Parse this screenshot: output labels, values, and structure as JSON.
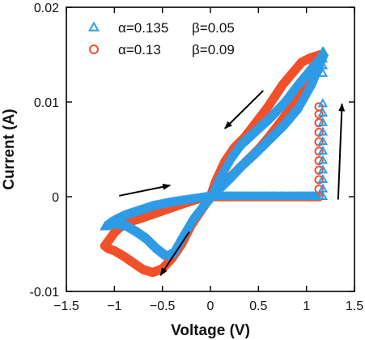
{
  "chart_data": {
    "type": "scatter",
    "title": "",
    "xlabel": "Voltage (V)",
    "ylabel": "Current (A)",
    "xlim": [
      -1.5,
      1.5
    ],
    "ylim": [
      -0.01,
      0.02
    ],
    "xticks": [
      -1.5,
      -1,
      -0.5,
      0,
      0.5,
      1,
      1.5
    ],
    "xtick_labels": [
      "−1.5",
      "−1",
      "−0.5",
      "0",
      "0.5",
      "1",
      "1.5"
    ],
    "yticks": [
      -0.01,
      0,
      0.01,
      0.02
    ],
    "ytick_labels": [
      "-0.01",
      "0",
      "0.01",
      "0.02"
    ],
    "grid": false,
    "legend_position": "top-left",
    "series": [
      {
        "name": "α=0.13",
        "name_extra": "β=0.09",
        "marker": "circle",
        "color": "#f2502a",
        "segments": [
          [
            [
              1.1,
              0
            ],
            [
              0.8,
              0
            ],
            [
              0.5,
              0
            ],
            [
              0.2,
              0
            ],
            [
              0,
              0
            ]
          ],
          [
            [
              0,
              0
            ],
            [
              0.1,
              0.001
            ],
            [
              0.2,
              0.002
            ],
            [
              0.35,
              0.0035
            ],
            [
              0.5,
              0.005
            ],
            [
              0.6,
              0.0062
            ],
            [
              0.7,
              0.0075
            ],
            [
              0.85,
              0.0095
            ],
            [
              1.0,
              0.0125
            ],
            [
              1.1,
              0.0143
            ],
            [
              1.15,
              0.015
            ]
          ],
          [
            [
              1.15,
              0.015
            ],
            [
              1.05,
              0.0147
            ],
            [
              0.95,
              0.0142
            ],
            [
              0.85,
              0.013
            ],
            [
              0.75,
              0.0118
            ],
            [
              0.6,
              0.0095
            ],
            [
              0.45,
              0.0075
            ],
            [
              0.35,
              0.0062
            ],
            [
              0.25,
              0.0052
            ],
            [
              0.15,
              0.0037
            ],
            [
              0.05,
              0.0015
            ],
            [
              0,
              0
            ]
          ],
          [
            [
              0,
              0
            ],
            [
              -0.1,
              -0.0015
            ],
            [
              -0.2,
              -0.003
            ],
            [
              -0.3,
              -0.005
            ],
            [
              -0.4,
              -0.0065
            ],
            [
              -0.5,
              -0.0076
            ],
            [
              -0.6,
              -0.008
            ],
            [
              -0.7,
              -0.0077
            ],
            [
              -0.8,
              -0.007
            ],
            [
              -0.9,
              -0.0063
            ],
            [
              -1.0,
              -0.0057
            ],
            [
              -1.06,
              -0.0055
            ],
            [
              -1.1,
              -0.0052
            ]
          ],
          [
            [
              -1.1,
              -0.0052
            ],
            [
              -1.05,
              -0.0045
            ],
            [
              -1.0,
              -0.0038
            ],
            [
              -0.95,
              -0.0033
            ],
            [
              -0.85,
              -0.0027
            ],
            [
              -0.7,
              -0.0022
            ],
            [
              -0.5,
              -0.0015
            ],
            [
              -0.3,
              -0.0008
            ],
            [
              -0.15,
              -0.0003
            ],
            [
              0,
              0
            ]
          ]
        ],
        "vertical": [
          1.13,
          [
            0,
            0.0008,
            0.0018,
            0.0028,
            0.0038,
            0.0048,
            0.0058,
            0.0068,
            0.0078,
            0.0087,
            0.0095
          ]
        ]
      },
      {
        "name": "α=0.135",
        "name_extra": "β=0.05",
        "marker": "triangle",
        "color": "#2e9be6",
        "segments": [
          [
            [
              1.1,
              0
            ],
            [
              0.8,
              0
            ],
            [
              0.5,
              0
            ],
            [
              0.2,
              0
            ],
            [
              0,
              0
            ]
          ],
          [
            [
              0,
              0
            ],
            [
              0.1,
              0.001
            ],
            [
              0.2,
              0.002
            ],
            [
              0.3,
              0.0031
            ],
            [
              0.45,
              0.0045
            ],
            [
              0.6,
              0.006
            ],
            [
              0.75,
              0.0075
            ],
            [
              0.9,
              0.0093
            ],
            [
              1.05,
              0.012
            ],
            [
              1.15,
              0.0145
            ],
            [
              1.18,
              0.0152
            ]
          ],
          [
            [
              1.18,
              0.0152
            ],
            [
              1.1,
              0.0142
            ],
            [
              1.0,
              0.013
            ],
            [
              0.9,
              0.0118
            ],
            [
              0.75,
              0.0098
            ],
            [
              0.6,
              0.0082
            ],
            [
              0.45,
              0.0068
            ],
            [
              0.3,
              0.0054
            ],
            [
              0.2,
              0.004
            ],
            [
              0.1,
              0.0022
            ],
            [
              0,
              0
            ]
          ],
          [
            [
              0,
              0
            ],
            [
              -0.1,
              -0.0012
            ],
            [
              -0.2,
              -0.0025
            ],
            [
              -0.3,
              -0.0042
            ],
            [
              -0.4,
              -0.006
            ],
            [
              -0.45,
              -0.0063
            ],
            [
              -0.55,
              -0.0055
            ],
            [
              -0.65,
              -0.0045
            ],
            [
              -0.75,
              -0.0038
            ],
            [
              -0.85,
              -0.0032
            ],
            [
              -0.95,
              -0.003
            ],
            [
              -1.05,
              -0.003
            ],
            [
              -1.1,
              -0.0032
            ]
          ],
          [
            [
              -1.1,
              -0.0032
            ],
            [
              -1.05,
              -0.0028
            ],
            [
              -1.0,
              -0.0025
            ],
            [
              -0.9,
              -0.002
            ],
            [
              -0.75,
              -0.0015
            ],
            [
              -0.6,
              -0.001
            ],
            [
              -0.4,
              -0.0006
            ],
            [
              -0.2,
              -0.0003
            ],
            [
              0,
              0
            ]
          ]
        ],
        "vertical": [
          1.17,
          [
            0,
            0.0008,
            0.0018,
            0.0028,
            0.0038,
            0.0048,
            0.0058,
            0.0068,
            0.0078,
            0.0088,
            0.0098,
            0.013,
            0.0138,
            0.0145,
            0.0153
          ]
        ]
      }
    ],
    "annotations": [
      {
        "type": "arrow",
        "from": [
          0.55,
          0.0112
        ],
        "to": [
          0.15,
          0.0072
        ]
      },
      {
        "type": "arrow",
        "from": [
          -0.95,
          0.0001
        ],
        "to": [
          -0.42,
          0.0012
        ]
      },
      {
        "type": "arrow",
        "from": [
          -0.22,
          -0.0037
        ],
        "to": [
          -0.52,
          -0.0083
        ]
      },
      {
        "type": "arrow",
        "from": [
          1.33,
          -0.0003
        ],
        "to": [
          1.37,
          0.0098
        ]
      }
    ]
  }
}
